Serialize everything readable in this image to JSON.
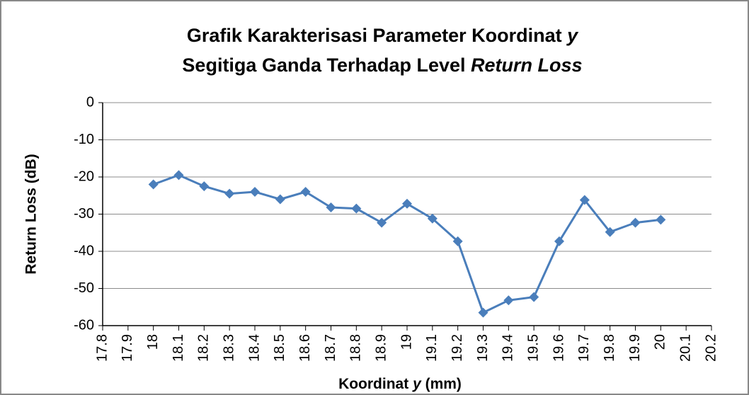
{
  "chart_data": {
    "type": "line",
    "title": [
      [
        "Grafik Karakterisasi Parameter Koordinat ",
        "y"
      ],
      [
        "Segitiga Ganda Terhadap Level ",
        "Return Loss"
      ]
    ],
    "x_label": [
      "Koordinat ",
      "y",
      " (mm)"
    ],
    "y_label": "Return Loss (dB)",
    "x": [
      18,
      18.1,
      18.2,
      18.3,
      18.4,
      18.5,
      18.6,
      18.7,
      18.8,
      18.9,
      19,
      19.1,
      19.2,
      19.3,
      19.4,
      19.5,
      19.6,
      19.7,
      19.8,
      19.9,
      20
    ],
    "series": [
      {
        "color": "#4a7ebb",
        "values": [
          -22,
          -19.5,
          -22.5,
          -24.5,
          -24,
          -26,
          -24,
          -28.2,
          -28.5,
          -32.3,
          -27.2,
          -31.2,
          -37.3,
          -56.5,
          -53.2,
          -52.3,
          -37.3,
          -26.2,
          -34.8,
          -32.3,
          -31.5
        ]
      }
    ],
    "xlim": [
      17.8,
      20.2
    ],
    "xticks": [
      17.8,
      17.9,
      18,
      18.1,
      18.2,
      18.3,
      18.4,
      18.5,
      18.6,
      18.7,
      18.8,
      18.9,
      19,
      19.1,
      19.2,
      19.3,
      19.4,
      19.5,
      19.6,
      19.7,
      19.8,
      19.9,
      20,
      20.1,
      20.2
    ],
    "ylim": [
      -60,
      0
    ],
    "yticks": [
      0,
      -10,
      -20,
      -30,
      -40,
      -50,
      -60
    ],
    "grid": true
  }
}
